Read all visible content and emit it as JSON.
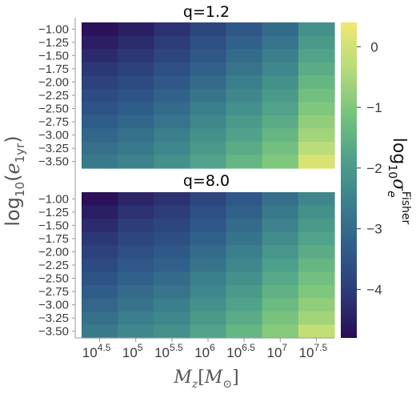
{
  "chart_data": {
    "type": "heatmap",
    "colormap": [
      "#2a0b54",
      "#2c3a78",
      "#2f5c8a",
      "#3b7f8c",
      "#4ea28a",
      "#78c47d",
      "#b8dc79",
      "#efe871"
    ],
    "panels": [
      {
        "title": "q=1.2",
        "x": [
          "4.5",
          "5",
          "5.5",
          "6",
          "6.5",
          "7",
          "7.5"
        ],
        "y": [
          "-1.00",
          "-1.25",
          "-1.50",
          "-1.75",
          "-2.00",
          "-2.25",
          "-2.50",
          "-2.75",
          "-3.00",
          "-3.25",
          "-3.50"
        ],
        "z": [
          [
            -4.7,
            -4.5,
            -4.2,
            -3.8,
            -3.4,
            -3.0,
            -2.2
          ],
          [
            -4.5,
            -4.3,
            -4.0,
            -3.6,
            -3.2,
            -2.8,
            -2.0
          ],
          [
            -4.3,
            -4.1,
            -3.8,
            -3.4,
            -3.0,
            -2.6,
            -1.8
          ],
          [
            -4.1,
            -3.9,
            -3.6,
            -3.2,
            -2.8,
            -2.4,
            -1.6
          ],
          [
            -3.9,
            -3.7,
            -3.4,
            -3.0,
            -2.6,
            -2.2,
            -1.4
          ],
          [
            -3.7,
            -3.5,
            -3.2,
            -2.8,
            -2.4,
            -2.0,
            -1.2
          ],
          [
            -3.5,
            -3.3,
            -3.0,
            -2.6,
            -2.2,
            -1.8,
            -1.0
          ],
          [
            -3.3,
            -3.1,
            -2.8,
            -2.4,
            -2.0,
            -1.6,
            -0.8
          ],
          [
            -3.1,
            -2.9,
            -2.6,
            -2.2,
            -1.8,
            -1.4,
            -0.6
          ],
          [
            -2.9,
            -2.7,
            -2.4,
            -2.0,
            -1.6,
            -1.2,
            -0.3
          ],
          [
            -2.7,
            -2.5,
            -2.2,
            -1.8,
            -1.4,
            -1.0,
            0.1
          ]
        ]
      },
      {
        "title": "q=8.0",
        "x": [
          "4.5",
          "5",
          "5.5",
          "6",
          "6.5",
          "7",
          "7.5"
        ],
        "y": [
          "-1.00",
          "-1.25",
          "-1.50",
          "-1.75",
          "-2.00",
          "-2.25",
          "-2.50",
          "-2.75",
          "-3.00",
          "-3.25",
          "-3.50"
        ],
        "z": [
          [
            -4.7,
            -4.4,
            -4.2,
            -3.8,
            -3.4,
            -2.9,
            -2.4
          ],
          [
            -4.5,
            -4.2,
            -4.0,
            -3.6,
            -3.2,
            -2.7,
            -2.2
          ],
          [
            -4.3,
            -4.0,
            -3.8,
            -3.4,
            -3.0,
            -2.5,
            -2.0
          ],
          [
            -4.1,
            -3.8,
            -3.6,
            -3.2,
            -2.8,
            -2.3,
            -1.8
          ],
          [
            -3.9,
            -3.6,
            -3.4,
            -3.0,
            -2.6,
            -2.1,
            -1.6
          ],
          [
            -3.7,
            -3.4,
            -3.2,
            -2.8,
            -2.4,
            -1.9,
            -1.4
          ],
          [
            -3.5,
            -3.2,
            -3.0,
            -2.6,
            -2.2,
            -1.7,
            -1.2
          ],
          [
            -3.3,
            -3.0,
            -2.8,
            -2.4,
            -2.0,
            -1.5,
            -1.0
          ],
          [
            -3.1,
            -2.8,
            -2.6,
            -2.2,
            -1.8,
            -1.3,
            -0.8
          ],
          [
            -2.9,
            -2.6,
            -2.4,
            -2.0,
            -1.6,
            -1.1,
            -0.6
          ],
          [
            -2.7,
            -2.4,
            -2.2,
            -1.8,
            -1.4,
            -0.9,
            -0.2
          ]
        ]
      }
    ],
    "xaxis": {
      "base": "10",
      "label_symbol": "M",
      "label_subscript": "z",
      "label_bracket_open": "[",
      "label_bracket_symbol": "M",
      "label_bracket_subscript": "⊙",
      "label_bracket_close": "]"
    },
    "yaxis": {
      "label_prefix": "log",
      "label_prefix_subscript": "10",
      "label_open": "(",
      "label_symbol": "e",
      "label_subscript": "1yr",
      "label_close": ")"
    },
    "colorbar": {
      "label_prefix": "log",
      "label_prefix_subscript": "10",
      "label_symbol": "σ",
      "label_subscript": "e",
      "label_superscript": "Fisher",
      "ticks": [
        "0",
        "−1",
        "−2",
        "−3",
        "−4"
      ],
      "tick_values": [
        0,
        -1,
        -2,
        -3,
        -4
      ],
      "range": [
        -4.8,
        0.4
      ]
    }
  }
}
